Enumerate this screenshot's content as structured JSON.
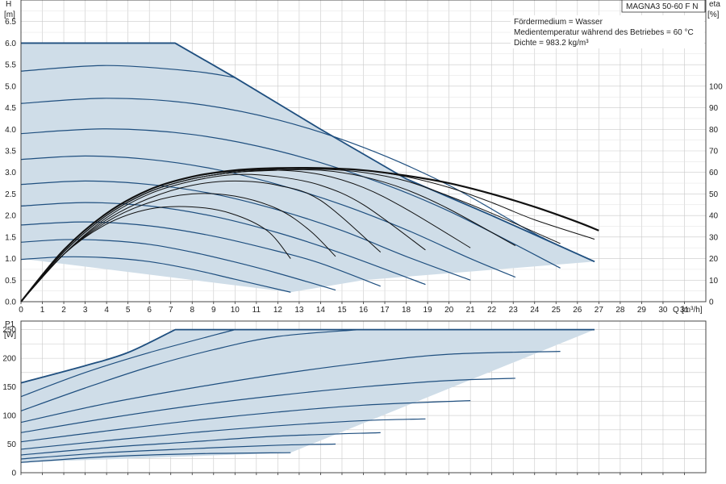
{
  "model": "MAGNA3 50-60 F N",
  "info": {
    "line1": "Fördermedium = Wasser",
    "line2": "Medientemperatur während des Betriebes = 60 °C",
    "line3": "Dichte = 983.2 kg/m³"
  },
  "colors": {
    "fill": "#cfdde8",
    "grid": "#c9c9c9",
    "envelope": "#1f4f7f",
    "curve": "#1f4f7f",
    "eta": "#111111"
  },
  "chart_data": [
    {
      "type": "line",
      "ylabel_top": "H",
      "ylabel_unit": "[m]",
      "y2label_top": "eta",
      "y2label_unit": "[%]",
      "xlabel_q": "Q",
      "xlabel_unit": "[m³/h]",
      "xlim": [
        0,
        32
      ],
      "ylim": [
        0,
        7
      ],
      "y2lim": [
        0,
        140
      ],
      "x_ticks": [
        0,
        1,
        2,
        3,
        4,
        5,
        6,
        7,
        8,
        9,
        10,
        11,
        12,
        13,
        14,
        15,
        16,
        17,
        18,
        19,
        20,
        21,
        22,
        23,
        24,
        25,
        26,
        27,
        28,
        29,
        30,
        31
      ],
      "y_ticks": [
        0.0,
        0.5,
        1.0,
        1.5,
        2.0,
        2.5,
        3.0,
        3.5,
        4.0,
        4.5,
        5.0,
        5.5,
        6.0,
        6.5
      ],
      "y2_ticks": [
        0,
        10,
        20,
        30,
        40,
        50,
        60,
        70,
        80,
        90,
        100
      ],
      "envelope": {
        "x": [
          0,
          7.2,
          10.0,
          14.0,
          18.0,
          22.0,
          26.8,
          26.8,
          16.0,
          12.6,
          0
        ],
        "y": [
          6.0,
          6.0,
          5.2,
          4.0,
          2.85,
          2.0,
          0.93,
          0.93,
          0.5,
          0.22,
          1.0
        ]
      },
      "series": [
        {
          "x": [
            0,
            2,
            4,
            6,
            8,
            10,
            12.6
          ],
          "y": [
            0.98,
            1.04,
            1.02,
            0.93,
            0.75,
            0.52,
            0.22
          ]
        },
        {
          "x": [
            0,
            2,
            4,
            6,
            8,
            10,
            12,
            14.7
          ],
          "y": [
            1.38,
            1.44,
            1.42,
            1.33,
            1.15,
            0.92,
            0.66,
            0.27
          ]
        },
        {
          "x": [
            0,
            3,
            6,
            9,
            12,
            14,
            16.8
          ],
          "y": [
            1.78,
            1.85,
            1.76,
            1.52,
            1.17,
            0.89,
            0.36
          ]
        },
        {
          "x": [
            0,
            3,
            6,
            9,
            12,
            15,
            18.9
          ],
          "y": [
            2.22,
            2.3,
            2.22,
            1.98,
            1.6,
            1.12,
            0.4
          ]
        },
        {
          "x": [
            0,
            3,
            6,
            9,
            12,
            15,
            18,
            21.0
          ],
          "y": [
            2.72,
            2.8,
            2.72,
            2.5,
            2.13,
            1.65,
            1.05,
            0.5
          ]
        },
        {
          "x": [
            0,
            3,
            6,
            9,
            12,
            15,
            18,
            21,
            23.1
          ],
          "y": [
            3.3,
            3.38,
            3.3,
            3.08,
            2.72,
            2.25,
            1.67,
            1.0,
            0.57
          ]
        },
        {
          "x": [
            0,
            4,
            8,
            12,
            16,
            20,
            25.2
          ],
          "y": [
            3.9,
            4.01,
            3.88,
            3.5,
            2.9,
            2.1,
            0.78
          ]
        },
        {
          "x": [
            0,
            4,
            8,
            12,
            16,
            20,
            24,
            26.8
          ],
          "y": [
            4.6,
            4.72,
            4.6,
            4.22,
            3.58,
            2.7,
            1.58,
            0.93
          ]
        },
        {
          "x": [
            0,
            4,
            8,
            10
          ],
          "y": [
            5.35,
            5.48,
            5.35,
            5.2
          ]
        }
      ],
      "eta_series": [
        {
          "x": [
            0,
            2,
            4,
            6,
            8,
            9.8,
            11.5,
            12.6
          ],
          "y": [
            0,
            22,
            36,
            43,
            44,
            41,
            33,
            20
          ]
        },
        {
          "x": [
            0,
            2,
            4,
            6,
            8,
            10,
            12,
            13.5,
            14.7
          ],
          "y": [
            0,
            22,
            37,
            46,
            50,
            49,
            43,
            33,
            21
          ]
        },
        {
          "x": [
            0,
            2,
            4,
            6,
            8,
            10,
            12,
            14,
            16.8
          ],
          "y": [
            0,
            22,
            38,
            48,
            54,
            56,
            54,
            47,
            23
          ]
        },
        {
          "x": [
            0,
            2,
            4,
            6,
            8,
            10,
            12,
            14,
            16,
            18.9
          ],
          "y": [
            0,
            22,
            39,
            50,
            56,
            59,
            58,
            54,
            45,
            24
          ]
        },
        {
          "x": [
            0,
            2,
            4,
            6,
            8,
            10,
            12,
            14,
            16,
            18,
            21.0
          ],
          "y": [
            0,
            23,
            40,
            51,
            57,
            60,
            61,
            59,
            53,
            43,
            25
          ]
        },
        {
          "x": [
            0,
            2,
            4,
            6,
            8,
            10,
            12,
            14,
            16,
            18,
            20,
            23.1
          ],
          "y": [
            0,
            23,
            40,
            51,
            57,
            60,
            61,
            61,
            58,
            52,
            43,
            26
          ]
        },
        {
          "x": [
            0,
            2,
            4,
            6,
            8,
            10,
            12,
            14,
            16,
            18,
            20,
            22,
            25.2
          ],
          "y": [
            0,
            23,
            40,
            51,
            57,
            60,
            61,
            61.5,
            60,
            56,
            49,
            41,
            27
          ]
        },
        {
          "x": [
            0,
            2,
            4,
            6,
            8,
            10,
            12,
            14,
            16,
            18,
            20,
            22,
            24,
            26.8
          ],
          "y": [
            0,
            24,
            41,
            52,
            58,
            60.5,
            61.5,
            62,
            61,
            58,
            53,
            46,
            38,
            29
          ]
        },
        {
          "x": [
            0,
            2,
            4,
            6,
            8,
            10,
            12,
            14,
            16,
            18,
            20,
            22,
            24,
            26,
            27.0
          ],
          "y": [
            0,
            24,
            41,
            52,
            58,
            61,
            62,
            62,
            61,
            58.5,
            55,
            50,
            44,
            37,
            33
          ]
        }
      ]
    },
    {
      "type": "line",
      "ylabel_top": "P1",
      "ylabel_unit": "[W]",
      "xlim": [
        0,
        32
      ],
      "ylim": [
        0,
        265
      ],
      "y_ticks": [
        0,
        50,
        100,
        150,
        200,
        250
      ],
      "envelope": {
        "x": [
          0,
          3,
          5,
          7.2,
          26.8,
          26.8,
          12.6,
          0
        ],
        "y": [
          157,
          187,
          210,
          250,
          250,
          250,
          35,
          18
        ]
      },
      "series": [
        {
          "x": [
            0,
            4,
            8,
            12.6
          ],
          "y": [
            18,
            28,
            33,
            35
          ]
        },
        {
          "x": [
            0,
            4,
            8,
            12,
            14.7
          ],
          "y": [
            24,
            35,
            42,
            48,
            50
          ]
        },
        {
          "x": [
            0,
            4,
            8,
            12,
            16.8
          ],
          "y": [
            31,
            44,
            54,
            64,
            70
          ]
        },
        {
          "x": [
            0,
            4,
            8,
            12,
            16,
            18.9
          ],
          "y": [
            41,
            56,
            70,
            82,
            91,
            94
          ]
        },
        {
          "x": [
            0,
            4,
            8,
            12,
            16,
            21.0
          ],
          "y": [
            54,
            73,
            91,
            106,
            118,
            126
          ]
        },
        {
          "x": [
            0,
            4,
            8,
            12,
            16,
            20,
            23.1
          ],
          "y": [
            70,
            95,
            117,
            135,
            150,
            161,
            165
          ]
        },
        {
          "x": [
            0,
            4,
            8,
            12,
            16,
            20,
            25.2
          ],
          "y": [
            88,
            121,
            148,
            172,
            192,
            207,
            212
          ]
        },
        {
          "x": [
            0,
            3,
            6,
            9,
            12,
            15.8
          ],
          "y": [
            108,
            148,
            185,
            215,
            238,
            250
          ]
        },
        {
          "x": [
            0,
            3,
            6,
            10.0
          ],
          "y": [
            133,
            175,
            210,
            250
          ]
        }
      ]
    }
  ]
}
